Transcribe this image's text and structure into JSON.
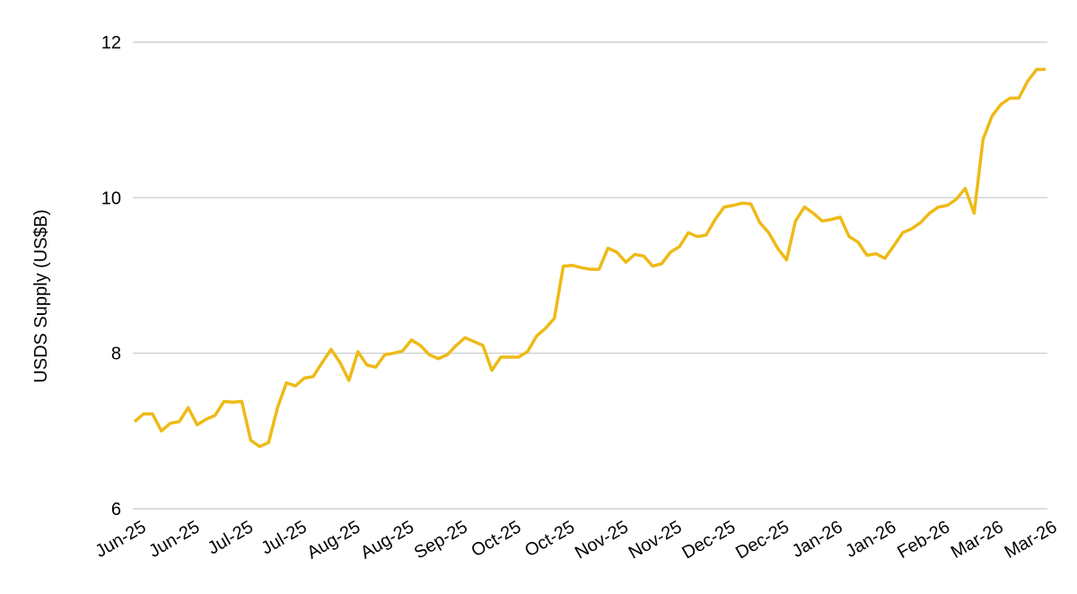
{
  "chart_data": {
    "type": "line",
    "y_label": "USDS Supply (US$B)",
    "categories": [
      "Jun-25",
      null,
      null,
      null,
      null,
      null,
      "Jun-25",
      null,
      null,
      null,
      null,
      null,
      "Jul-25",
      null,
      null,
      null,
      null,
      null,
      "Jul-25",
      null,
      null,
      null,
      null,
      null,
      "Aug-25",
      null,
      null,
      null,
      null,
      null,
      "Aug-25",
      null,
      null,
      null,
      null,
      null,
      "Sep-25",
      null,
      null,
      null,
      null,
      null,
      "Oct-25",
      null,
      null,
      null,
      null,
      null,
      "Oct-25",
      null,
      null,
      null,
      null,
      null,
      "Nov-25",
      null,
      null,
      null,
      null,
      null,
      "Nov-25",
      null,
      null,
      null,
      null,
      null,
      "Dec-25",
      null,
      null,
      null,
      null,
      null,
      "Dec-25",
      null,
      null,
      null,
      null,
      null,
      "Jan-26",
      null,
      null,
      null,
      null,
      null,
      "Jan-26",
      null,
      null,
      null,
      null,
      null,
      "Feb-26",
      null,
      null,
      null,
      null,
      null,
      "Mar-26",
      null,
      null,
      null,
      null,
      null,
      "Mar-26"
    ],
    "series": [
      {
        "color": "#eeba17",
        "values": [
          7.12,
          7.22,
          7.22,
          7.0,
          7.1,
          7.12,
          7.3,
          7.08,
          7.15,
          7.2,
          7.38,
          7.37,
          7.38,
          6.88,
          6.8,
          6.85,
          7.3,
          7.62,
          7.58,
          7.68,
          7.7,
          7.88,
          8.05,
          7.88,
          7.65,
          8.02,
          7.85,
          7.82,
          7.98,
          8.0,
          8.03,
          8.17,
          8.1,
          7.98,
          7.93,
          7.98,
          8.1,
          8.2,
          8.15,
          8.1,
          7.78,
          7.95,
          7.95,
          7.95,
          8.02,
          8.22,
          8.32,
          8.45,
          9.12,
          9.13,
          9.1,
          9.08,
          9.08,
          9.35,
          9.3,
          9.17,
          9.27,
          9.25,
          9.12,
          9.15,
          9.3,
          9.37,
          9.55,
          9.5,
          9.52,
          9.72,
          9.88,
          9.9,
          9.93,
          9.92,
          9.68,
          9.55,
          9.35,
          9.2,
          9.7,
          9.88,
          9.8,
          9.7,
          9.72,
          9.75,
          9.5,
          9.43,
          9.26,
          9.28,
          9.22,
          9.38,
          9.55,
          9.6,
          9.68,
          9.8,
          9.88,
          9.9,
          9.98,
          10.12,
          9.8,
          10.75,
          11.05,
          11.2,
          11.28,
          11.28,
          11.5,
          11.65,
          11.65
        ]
      }
    ],
    "ylim": [
      6,
      12
    ],
    "yticks": [
      6,
      8,
      10,
      12
    ],
    "grid": true
  }
}
